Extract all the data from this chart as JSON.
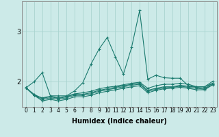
{
  "xlabel": "Humidex (Indice chaleur)",
  "ylabel": "",
  "bg_color": "#cceae8",
  "line_color": "#1a7a6e",
  "grid_color": "#aad4d0",
  "xlim": [
    -0.5,
    23.5
  ],
  "ylim": [
    1.5,
    3.6
  ],
  "yticks": [
    2,
    3
  ],
  "xticks": [
    0,
    1,
    2,
    3,
    4,
    5,
    6,
    7,
    8,
    9,
    10,
    11,
    12,
    13,
    14,
    15,
    16,
    17,
    18,
    19,
    20,
    21,
    22,
    23
  ],
  "series": [
    [
      1.88,
      2.0,
      2.18,
      1.72,
      1.72,
      1.72,
      1.82,
      1.98,
      2.35,
      2.65,
      2.88,
      2.5,
      2.15,
      2.68,
      3.42,
      2.05,
      2.13,
      2.08,
      2.07,
      2.07,
      1.92,
      1.9,
      1.9,
      1.97
    ],
    [
      1.88,
      1.75,
      1.67,
      1.7,
      1.67,
      1.7,
      1.75,
      1.75,
      1.78,
      1.83,
      1.86,
      1.89,
      1.92,
      1.95,
      1.97,
      1.83,
      1.87,
      1.9,
      1.9,
      1.93,
      1.91,
      1.89,
      1.87,
      1.97
    ],
    [
      1.88,
      1.73,
      1.65,
      1.68,
      1.65,
      1.68,
      1.73,
      1.73,
      1.76,
      1.81,
      1.84,
      1.87,
      1.9,
      1.93,
      1.95,
      1.81,
      1.85,
      1.88,
      1.89,
      1.91,
      1.89,
      1.87,
      1.85,
      1.95
    ],
    [
      1.88,
      1.73,
      1.62,
      1.65,
      1.62,
      1.65,
      1.7,
      1.7,
      1.73,
      1.78,
      1.81,
      1.84,
      1.87,
      1.9,
      1.92,
      1.78,
      1.83,
      1.86,
      1.87,
      1.89,
      1.87,
      1.84,
      1.84,
      1.94
    ],
    [
      1.88,
      1.73,
      1.68,
      1.71,
      1.68,
      1.71,
      1.76,
      1.78,
      1.81,
      1.86,
      1.89,
      1.91,
      1.94,
      1.97,
      1.99,
      1.87,
      1.92,
      1.95,
      1.95,
      1.97,
      1.95,
      1.9,
      1.9,
      2.01
    ]
  ]
}
